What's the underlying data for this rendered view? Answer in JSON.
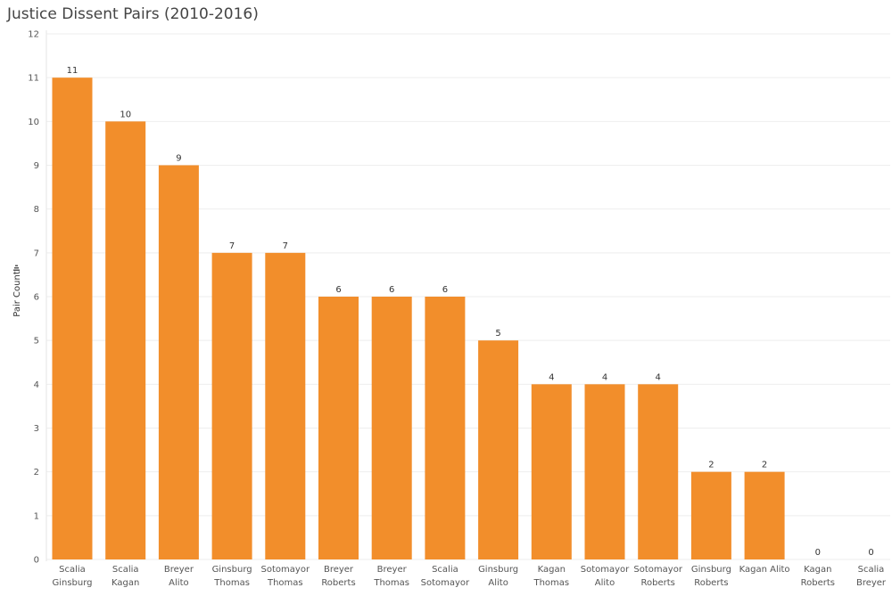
{
  "chart_data": {
    "type": "bar",
    "title": "Justice Dissent Pairs (2010-2016)",
    "xlabel": "",
    "ylabel": "Pair Count",
    "ylim": [
      0,
      12
    ],
    "yticks": [
      0,
      1,
      2,
      3,
      4,
      5,
      6,
      7,
      8,
      9,
      10,
      11,
      12
    ],
    "bar_color": "#f28e2b",
    "categories": [
      [
        "Scalia",
        "Ginsburg"
      ],
      [
        "Scalia",
        "Kagan"
      ],
      [
        "Breyer",
        "Alito"
      ],
      [
        "Ginsburg",
        "Thomas"
      ],
      [
        "Sotomayor",
        "Thomas"
      ],
      [
        "Breyer",
        "Roberts"
      ],
      [
        "Breyer",
        "Thomas"
      ],
      [
        "Scalia",
        "Sotomayor"
      ],
      [
        "Ginsburg",
        "Alito"
      ],
      [
        "Kagan",
        "Thomas"
      ],
      [
        "Sotomayor",
        "Alito"
      ],
      [
        "Sotomayor",
        "Roberts"
      ],
      [
        "Ginsburg",
        "Roberts"
      ],
      [
        "Kagan Alito"
      ],
      [
        "Kagan",
        "Roberts"
      ],
      [
        "Scalia",
        "Breyer"
      ]
    ],
    "values": [
      11,
      10,
      9,
      7,
      7,
      6,
      6,
      6,
      5,
      4,
      4,
      4,
      2,
      2,
      0,
      0
    ]
  }
}
